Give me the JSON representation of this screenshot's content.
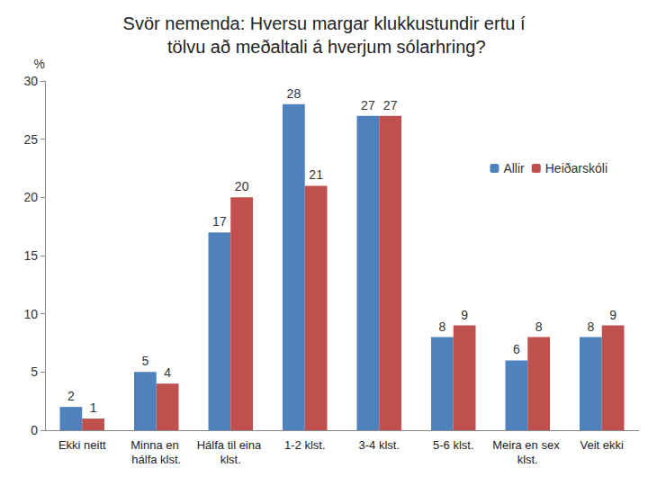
{
  "chart_data": {
    "type": "bar",
    "title": "Svör nemenda: Hversu margar klukkustundir ertu í tölvu að meðaltali á hverjum sólarhring?",
    "y_label": "%",
    "categories": [
      "Ekki neitt",
      "Minna en hálfa klst.",
      "Hálfa til eina klst.",
      "1-2 klst.",
      "3-4 klst.",
      "5-6 klst.",
      "Meira en sex klst.",
      "Veit ekki"
    ],
    "series": [
      {
        "name": "Allir",
        "color": "#4f81bd",
        "values": [
          2,
          5,
          17,
          28,
          27,
          8,
          6,
          8
        ]
      },
      {
        "name": "Heiðarskóli",
        "color": "#c0504d",
        "values": [
          1,
          4,
          20,
          21,
          27,
          9,
          8,
          9
        ]
      }
    ],
    "ylim": [
      0,
      30
    ],
    "yticks": [
      0,
      5,
      10,
      15,
      20,
      25,
      30
    ],
    "grid": false,
    "legend": "top-right",
    "data_labels": true
  }
}
